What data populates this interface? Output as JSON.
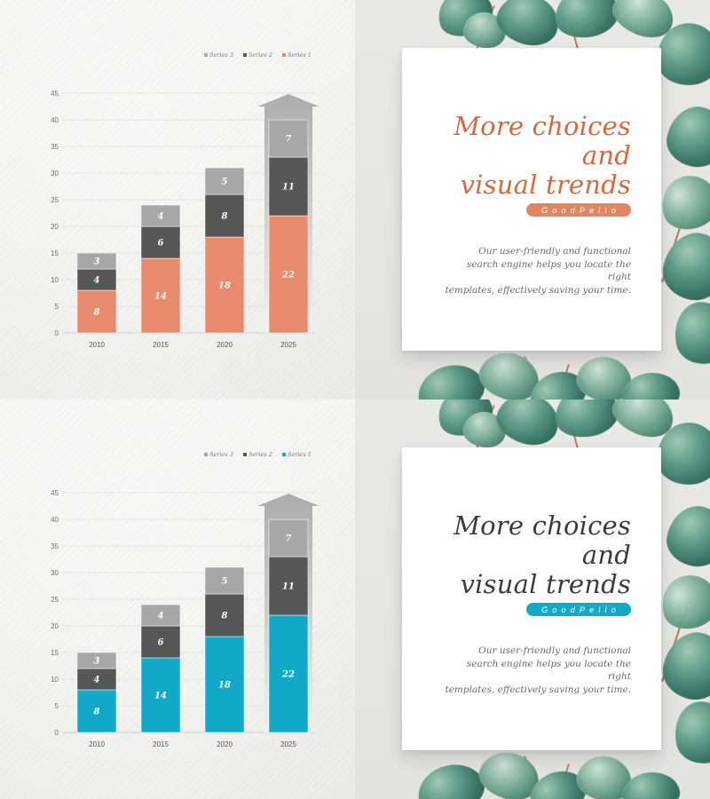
{
  "slides": [
    {
      "card": {
        "title": "More choices and\nvisual trends",
        "badge": "GoodPello",
        "description": "Our user-friendly and functional\nsearch engine helps you locate the right\ntemplates, effectively saving your time.",
        "title_color": "#d8673e",
        "badge_color": "#e08663"
      },
      "chart_data": {
        "type": "bar",
        "stacked": true,
        "categories": [
          "2010",
          "2015",
          "2020",
          "2025"
        ],
        "series": [
          {
            "name": "Series 1",
            "values": [
              8,
              14,
              18,
              22
            ],
            "color": "#e88a6e"
          },
          {
            "name": "Series 2",
            "values": [
              4,
              6,
              8,
              11
            ],
            "color": "#565656"
          },
          {
            "name": "Series 3",
            "values": [
              3,
              4,
              5,
              7
            ],
            "color": "#a7a7a7"
          }
        ],
        "legend_order": [
          "Series 3",
          "Series 2",
          "Series 1"
        ],
        "yticks": [
          0,
          5,
          10,
          15,
          20,
          25,
          30,
          35,
          40,
          45
        ],
        "ylim": [
          0,
          45
        ],
        "grid": true,
        "legend": "top-right",
        "highlight_category": "2025"
      }
    },
    {
      "card": {
        "title": "More choices and\nvisual trends",
        "badge": "GoodPello",
        "description": "Our user-friendly and functional\nsearch engine helps you locate the right\ntemplates, effectively saving your time.",
        "title_color": "#3c3c3c",
        "badge_color": "#15a9c6"
      },
      "chart_data": {
        "type": "bar",
        "stacked": true,
        "categories": [
          "2010",
          "2015",
          "2020",
          "2025"
        ],
        "series": [
          {
            "name": "Series 1",
            "values": [
              8,
              14,
              18,
              22
            ],
            "color": "#12a9c8"
          },
          {
            "name": "Series 2",
            "values": [
              4,
              6,
              8,
              11
            ],
            "color": "#565656"
          },
          {
            "name": "Series 3",
            "values": [
              3,
              4,
              5,
              7
            ],
            "color": "#a7a7a7"
          }
        ],
        "legend_order": [
          "Series 3",
          "Series 2",
          "Series 1"
        ],
        "yticks": [
          0,
          5,
          10,
          15,
          20,
          25,
          30,
          35,
          40,
          45
        ],
        "ylim": [
          0,
          45
        ],
        "grid": true,
        "legend": "top-right",
        "highlight_category": "2025"
      }
    }
  ]
}
